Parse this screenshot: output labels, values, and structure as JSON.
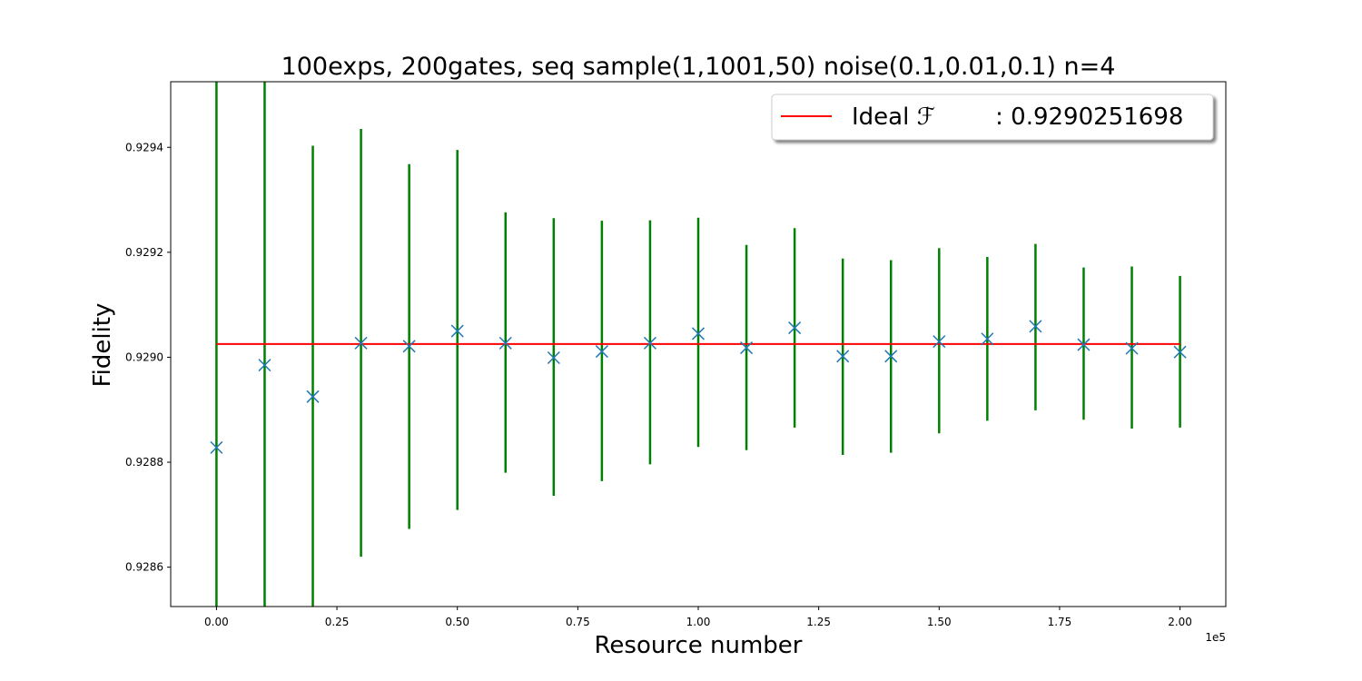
{
  "chart_data": {
    "type": "scatter",
    "title": "100exps, 200gates, seq sample(1,1001,50) noise(0.1,0.01,0.1) n=4",
    "xlabel": "Resource number",
    "ylabel": "Fidelity",
    "x_offset_label": "1e5",
    "xlim": [
      -0.095,
      2.095
    ],
    "ylim": [
      0.928525,
      0.929525
    ],
    "x_ticks": [
      0.0,
      0.25,
      0.5,
      0.75,
      1.0,
      1.25,
      1.5,
      1.75,
      2.0
    ],
    "x_tick_labels": [
      "0.00",
      "0.25",
      "0.50",
      "0.75",
      "1.00",
      "1.25",
      "1.50",
      "1.75",
      "2.00"
    ],
    "y_ticks": [
      0.9286,
      0.9288,
      0.929,
      0.9292,
      0.9294
    ],
    "y_tick_labels": [
      "0.9286",
      "0.9288",
      "0.9290",
      "0.9292",
      "0.9294"
    ],
    "grid": false,
    "legend_position": "top-right",
    "ideal_line": {
      "name": "Ideal ℱ        : 0.9290251698",
      "value": 0.9290251698,
      "x_range": [
        0.0,
        2.0
      ],
      "color": "#ff0000"
    },
    "series": [
      {
        "marker": "x",
        "color": "#1f77b4",
        "errorbar_color": "#008000",
        "x": [
          0.0,
          0.1,
          0.2,
          0.3,
          0.4,
          0.5,
          0.6,
          0.7,
          0.8,
          0.9,
          1.0,
          1.1,
          1.2,
          1.3,
          1.4,
          1.5,
          1.6,
          1.7,
          1.8,
          1.9,
          2.0
        ],
        "y": [
          0.928828,
          0.928985,
          0.928925,
          0.929027,
          0.929021,
          0.92905,
          0.929027,
          0.928999,
          0.929011,
          0.929027,
          0.929045,
          0.929018,
          0.929056,
          0.929002,
          0.929002,
          0.92903,
          0.929035,
          0.929059,
          0.929024,
          0.929017,
          0.92901
        ],
        "yerr_low": [
          0.9284,
          0.9284,
          0.9284,
          0.92862,
          0.928673,
          0.928709,
          0.92878,
          0.928736,
          0.928764,
          0.928796,
          0.928829,
          0.928823,
          0.928866,
          0.928814,
          0.928818,
          0.928855,
          0.928879,
          0.928899,
          0.928881,
          0.928864,
          0.928866
        ],
        "yerr_high": [
          0.9296,
          0.9296,
          0.929403,
          0.929435,
          0.929368,
          0.929395,
          0.929276,
          0.929265,
          0.92926,
          0.929261,
          0.929266,
          0.929214,
          0.929246,
          0.929188,
          0.929185,
          0.929208,
          0.929191,
          0.929216,
          0.929171,
          0.929173,
          0.929155
        ]
      }
    ]
  }
}
